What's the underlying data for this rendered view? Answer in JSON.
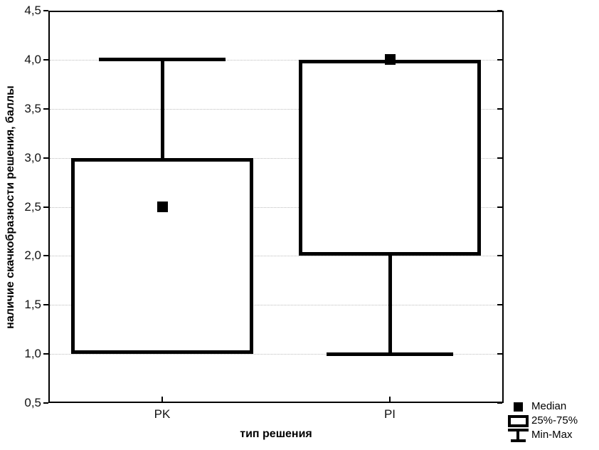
{
  "chart_data": {
    "type": "box",
    "title": "",
    "xlabel": "тип решения",
    "ylabel": "наличие скачкобразности решения, баллы",
    "ylim": [
      0.5,
      4.5
    ],
    "ytick_step": 0.5,
    "ytick_labels": [
      "0,5",
      "1,0",
      "1,5",
      "2,0",
      "2,5",
      "3,0",
      "3,5",
      "4,0",
      "4,5"
    ],
    "grid": {
      "horizontal": true,
      "style": "dotted",
      "range": [
        1.0,
        4.0
      ]
    },
    "categories": [
      "PK",
      "PI"
    ],
    "series": [
      {
        "category": "PK",
        "min": 1.0,
        "q1": 1.0,
        "median": 2.5,
        "q3": 3.0,
        "max": 4.0
      },
      {
        "category": "PI",
        "min": 1.0,
        "q1": 2.0,
        "median": 4.0,
        "q3": 4.0,
        "max": 4.0
      }
    ],
    "legend": {
      "position": "bottom-right-outside",
      "items": [
        {
          "symbol": "median-square",
          "label": "Median"
        },
        {
          "symbol": "iqr-box",
          "label": "25%-75%"
        },
        {
          "symbol": "minmax-whisker",
          "label": "Min-Max"
        }
      ]
    },
    "colors": {
      "stroke": "#000000",
      "median_fill": "#000000",
      "grid": "#bdbdbd",
      "background": "#ffffff",
      "text": "#111111"
    }
  }
}
